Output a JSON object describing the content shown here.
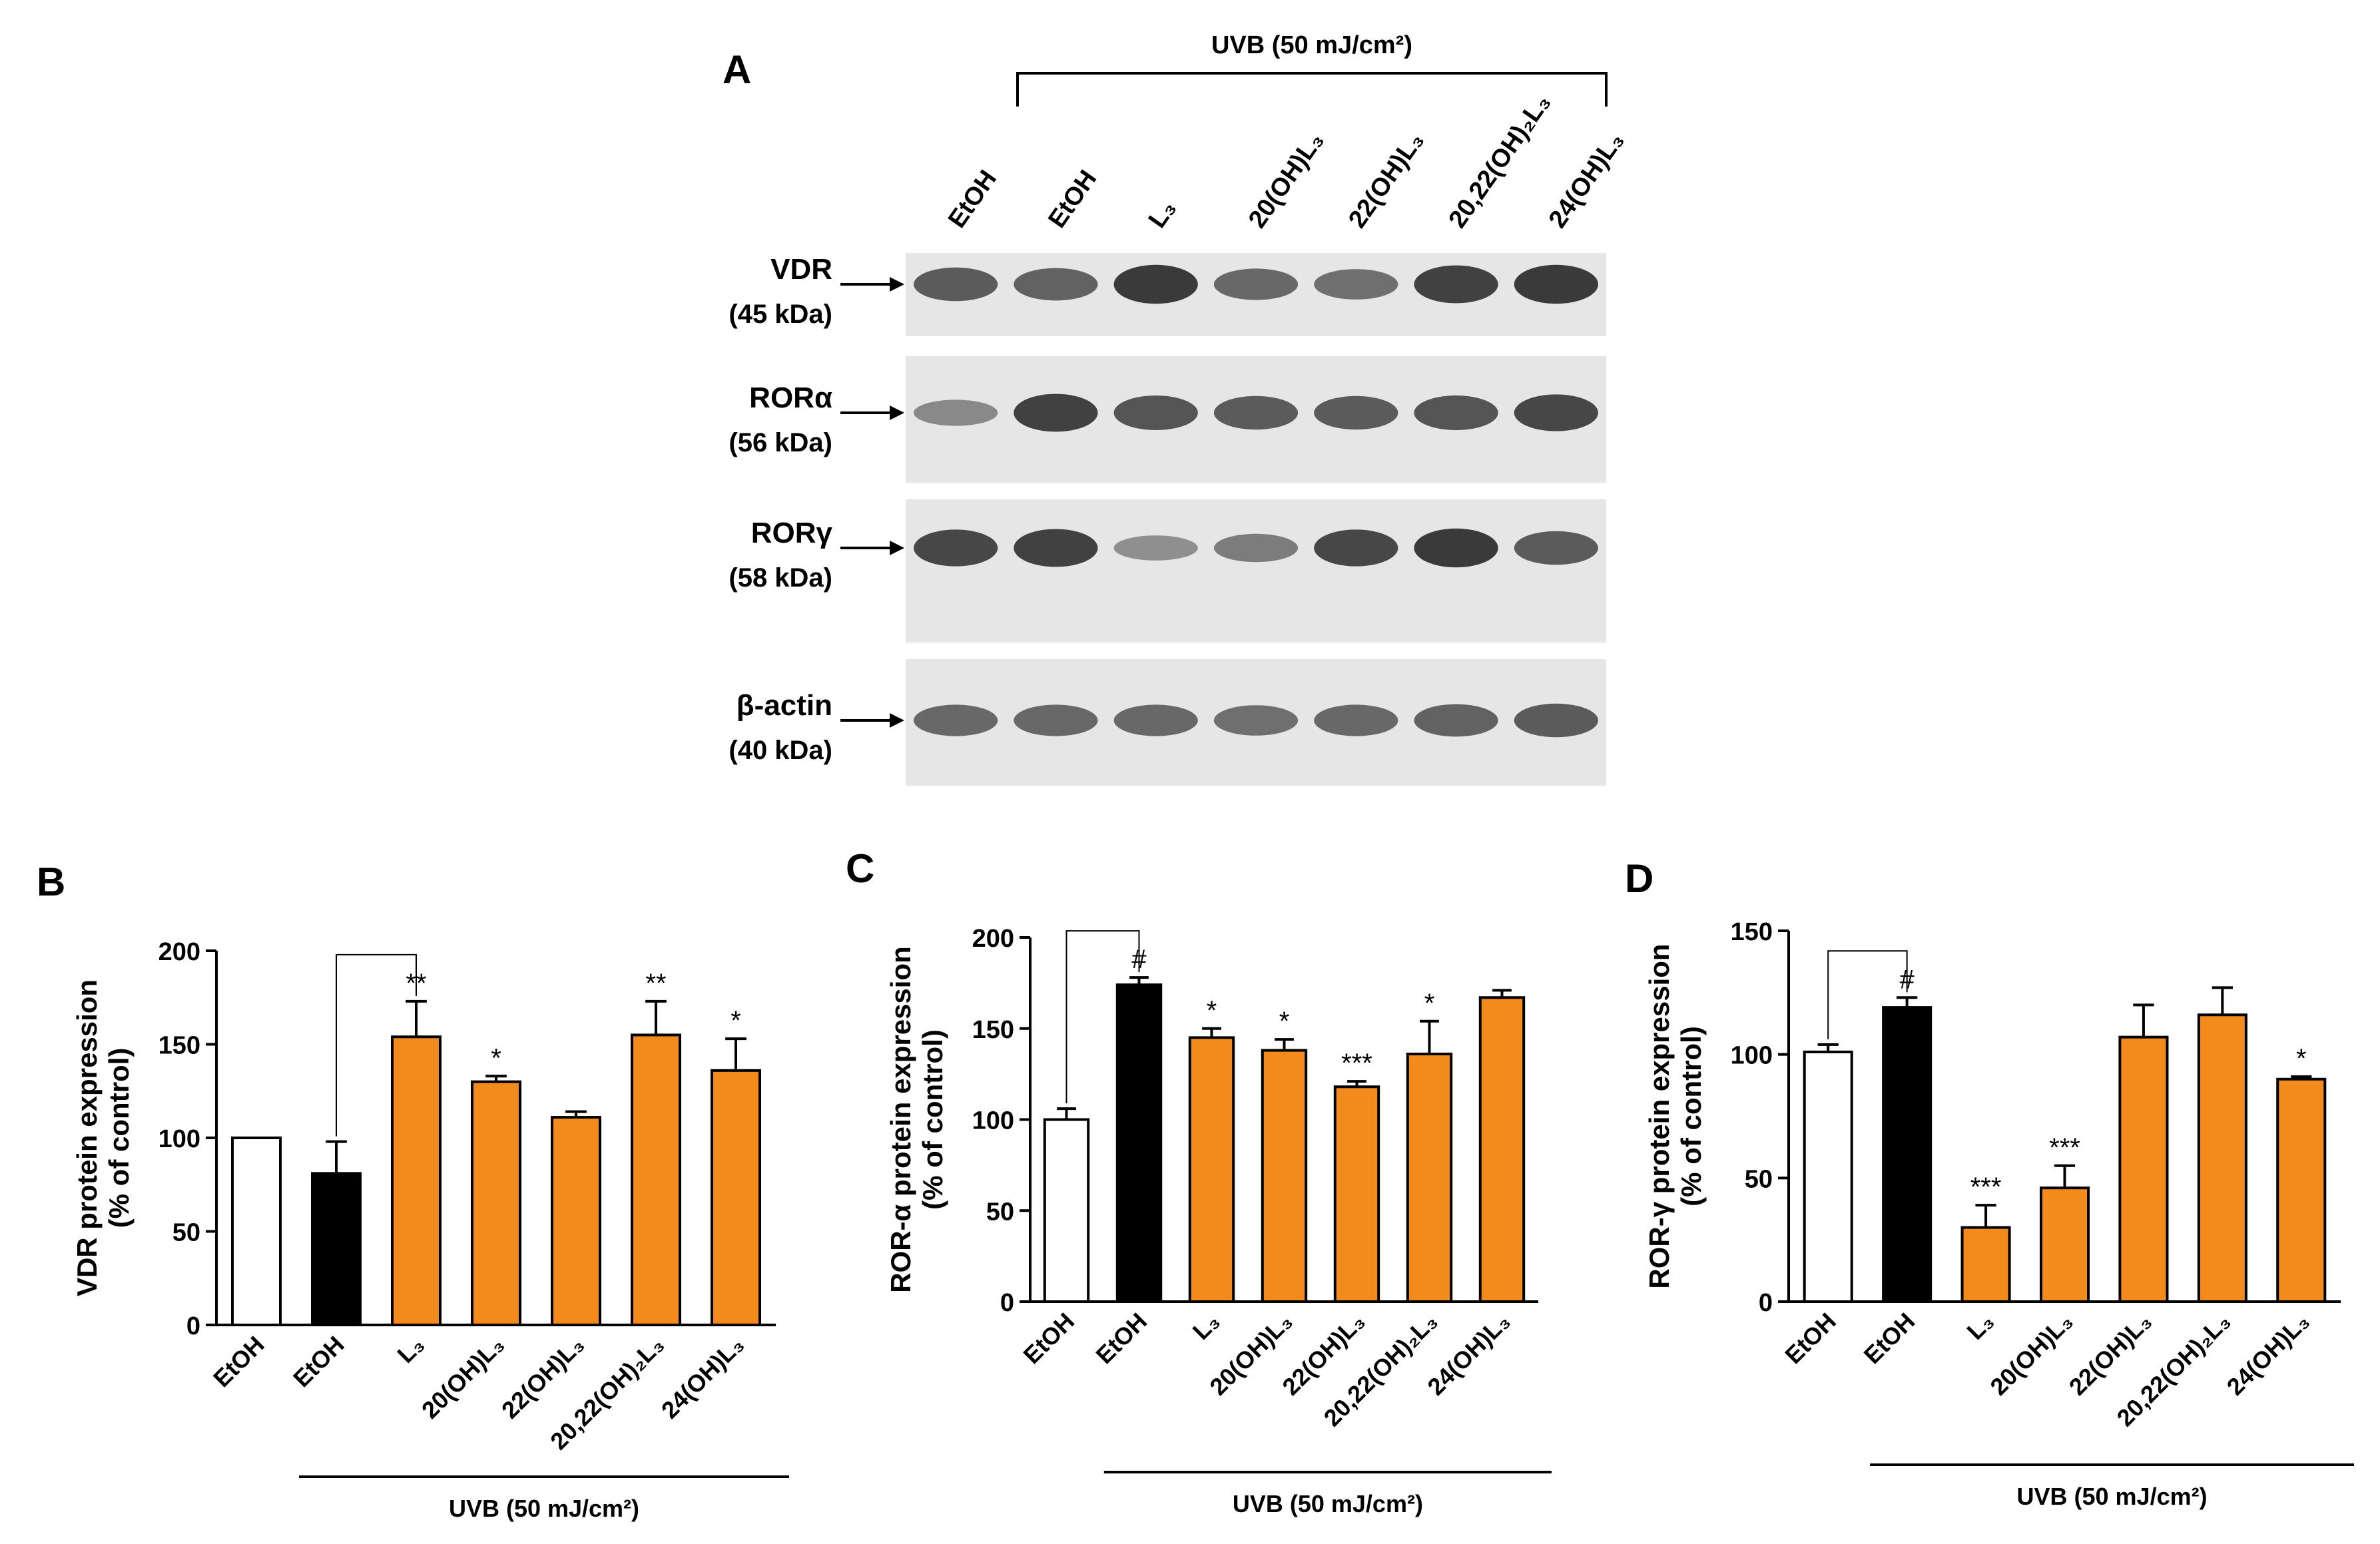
{
  "panels": {
    "A": "A",
    "B": "B",
    "C": "C",
    "D": "D"
  },
  "colors": {
    "control": "#ffffff",
    "uvb": "#000000",
    "treated": "#f28a1c",
    "blot_background": "#e6e6e6",
    "band": "#2a2a2a"
  },
  "blot": {
    "uvb_label": "UVB (50 mJ/cm²)",
    "lanes": [
      "EtOH",
      "EtOH",
      "L₃",
      "20(OH)L₃",
      "22(OH)L₃",
      "20,22(OH)₂L₃",
      "24(OH)L₃"
    ],
    "rows": [
      {
        "name": "VDR",
        "kda": "(45 kDa)",
        "intensity": [
          0.7,
          0.65,
          0.95,
          0.6,
          0.55,
          0.9,
          0.95
        ]
      },
      {
        "name": "RORα",
        "kda": "(56 kDa)",
        "intensity": [
          0.35,
          0.9,
          0.75,
          0.7,
          0.7,
          0.75,
          0.85
        ]
      },
      {
        "name": "RORγ",
        "kda": "(58 kDa)",
        "intensity": [
          0.85,
          0.9,
          0.3,
          0.45,
          0.85,
          0.95,
          0.7
        ]
      },
      {
        "name": "β-actin",
        "kda": "(40 kDa)",
        "intensity": [
          0.6,
          0.6,
          0.6,
          0.55,
          0.6,
          0.65,
          0.7
        ]
      }
    ]
  },
  "chart_data": [
    {
      "panel": "B",
      "type": "bar",
      "categories": [
        "EtOH",
        "EtOH",
        "L₃",
        "20(OH)L₃",
        "22(OH)L₃",
        "20,22(OH)₂L₃",
        "24(OH)L₃"
      ],
      "values": [
        100,
        81,
        154,
        130,
        111,
        155,
        136
      ],
      "errors": [
        0,
        17,
        19,
        3,
        3,
        18,
        17
      ],
      "significance": [
        "",
        "",
        "**",
        "*",
        "",
        "**",
        "*"
      ],
      "bar_colors": [
        "#ffffff",
        "#000000",
        "#f28a1c",
        "#f28a1c",
        "#f28a1c",
        "#f28a1c",
        "#f28a1c"
      ],
      "ylabel": "VDR protein expression",
      "ylabel2": "(% of control)",
      "xlabel": "UVB (50 mJ/cm²)",
      "ylim": [
        0,
        200
      ],
      "yticks": [
        0,
        50,
        100,
        150,
        200
      ],
      "bracket": {
        "from": 1,
        "to": 2
      }
    },
    {
      "panel": "C",
      "type": "bar",
      "categories": [
        "EtOH",
        "EtOH",
        "L₃",
        "20(OH)L₃",
        "22(OH)L₃",
        "20,22(OH)₂L₃",
        "24(OH)L₃"
      ],
      "values": [
        100,
        174,
        145,
        138,
        118,
        136,
        167
      ],
      "errors": [
        6,
        4,
        5,
        6,
        3,
        18,
        4
      ],
      "significance": [
        "",
        "#",
        "*",
        "*",
        "***",
        "*",
        ""
      ],
      "bar_colors": [
        "#ffffff",
        "#000000",
        "#f28a1c",
        "#f28a1c",
        "#f28a1c",
        "#f28a1c",
        "#f28a1c"
      ],
      "ylabel": "ROR-α protein expression",
      "ylabel2": "(% of control)",
      "xlabel": "UVB (50 mJ/cm²)",
      "ylim": [
        0,
        200
      ],
      "yticks": [
        0,
        50,
        100,
        150,
        200
      ],
      "bracket": {
        "from": 0,
        "to": 1
      }
    },
    {
      "panel": "D",
      "type": "bar",
      "categories": [
        "EtOH",
        "EtOH",
        "L₃",
        "20(OH)L₃",
        "22(OH)L₃",
        "20,22(OH)₂L₃",
        "24(OH)L₃"
      ],
      "values": [
        101,
        119,
        30,
        46,
        107,
        116,
        90
      ],
      "errors": [
        3,
        4,
        9,
        9,
        13,
        11,
        1
      ],
      "significance": [
        "",
        "#",
        "***",
        "***",
        "",
        "",
        "*"
      ],
      "bar_colors": [
        "#ffffff",
        "#000000",
        "#f28a1c",
        "#f28a1c",
        "#f28a1c",
        "#f28a1c",
        "#f28a1c"
      ],
      "ylabel": "ROR-γ protein expression",
      "ylabel2": "(% of control)",
      "xlabel": "UVB (50 mJ/cm²)",
      "ylim": [
        0,
        150
      ],
      "yticks": [
        0,
        50,
        100,
        150
      ],
      "bracket": {
        "from": 0,
        "to": 1
      }
    }
  ]
}
